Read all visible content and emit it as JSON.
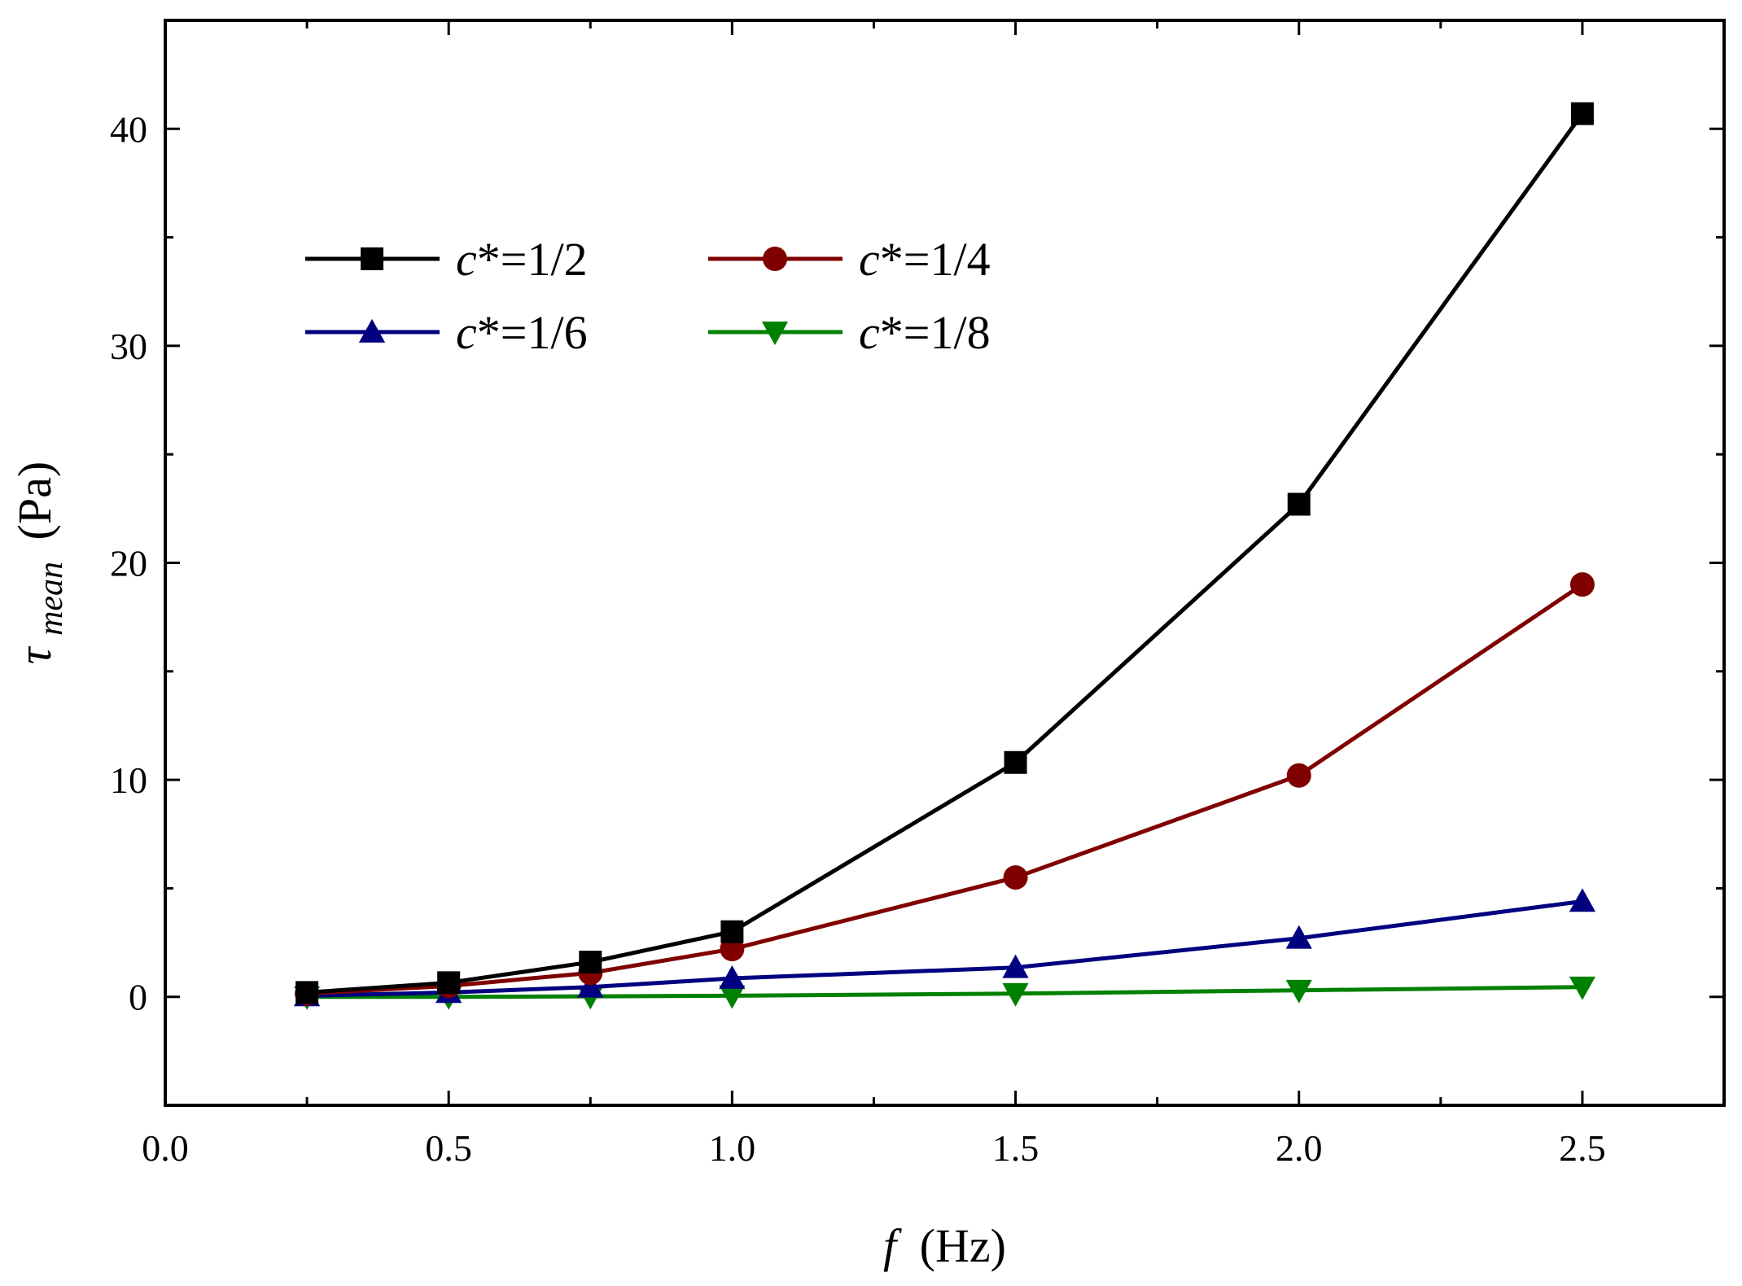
{
  "chart_data": {
    "type": "line",
    "title": "",
    "xlabel": {
      "var": "f",
      "unit": "(Hz)"
    },
    "ylabel": {
      "var": "τ",
      "sub": "mean",
      "unit": "(Pa)"
    },
    "xlim": [
      0,
      2.75
    ],
    "ylim": [
      -5,
      45
    ],
    "x_ticks": [
      0.0,
      0.5,
      1.0,
      1.5,
      2.0,
      2.5
    ],
    "x_tick_labels": [
      "0.0",
      "0.5",
      "1.0",
      "1.5",
      "2.0",
      "2.5"
    ],
    "y_ticks": [
      0,
      10,
      20,
      30,
      40
    ],
    "y_tick_labels": [
      "0",
      "10",
      "20",
      "30",
      "40"
    ],
    "x": [
      0.25,
      0.5,
      0.75,
      1.0,
      1.5,
      2.0,
      2.5
    ],
    "legend_position": "upper-left",
    "series": [
      {
        "label_var": "c",
        "label_rest": "*=1/2",
        "color": "#000000",
        "marker": "square",
        "values": [
          0.2,
          0.65,
          1.6,
          3.0,
          10.8,
          22.7,
          40.7
        ]
      },
      {
        "label_var": "c",
        "label_rest": "*=1/4",
        "color": "#800000",
        "marker": "circle",
        "values": [
          0.15,
          0.5,
          1.1,
          2.2,
          5.5,
          10.2,
          19.0
        ]
      },
      {
        "label_var": "c",
        "label_rest": "*=1/6",
        "color": "#000080",
        "marker": "triangle-up",
        "values": [
          0.05,
          0.2,
          0.45,
          0.85,
          1.35,
          2.7,
          4.4
        ]
      },
      {
        "label_var": "c",
        "label_rest": "*=1/8",
        "color": "#008000",
        "marker": "triangle-down",
        "values": [
          0.0,
          0.0,
          0.02,
          0.05,
          0.15,
          0.3,
          0.45
        ]
      }
    ]
  }
}
